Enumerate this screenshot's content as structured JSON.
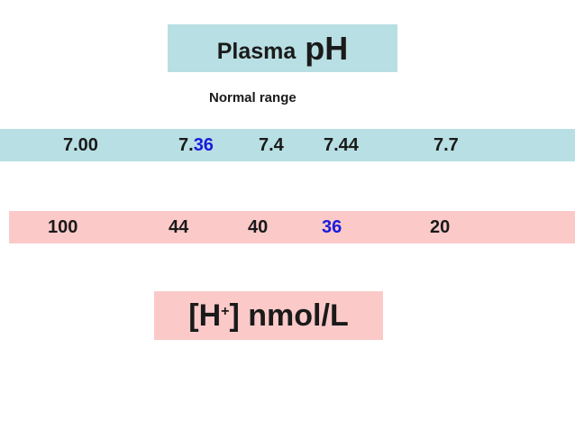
{
  "title": {
    "word": "Plasma",
    "symbol": "pH"
  },
  "normal_range_label": "Normal range",
  "ph_scale": {
    "values": [
      {
        "text": "7.00"
      },
      {
        "prefix": "7.",
        "highlight": "36"
      },
      {
        "text": "7.4"
      },
      {
        "text": "7.44"
      },
      {
        "text": "7.7"
      }
    ]
  },
  "h_scale": {
    "values": [
      {
        "text": "100"
      },
      {
        "text": "44"
      },
      {
        "text": "40"
      },
      {
        "text": "36",
        "highlight": true
      },
      {
        "text": "20"
      }
    ]
  },
  "unit_label": {
    "open": "[H",
    "sup": "+",
    "close": "] nmol/L"
  },
  "colors": {
    "ph_band": "#b8dfe3",
    "h_band": "#fcc9c9",
    "highlight": "#1a1adb"
  }
}
